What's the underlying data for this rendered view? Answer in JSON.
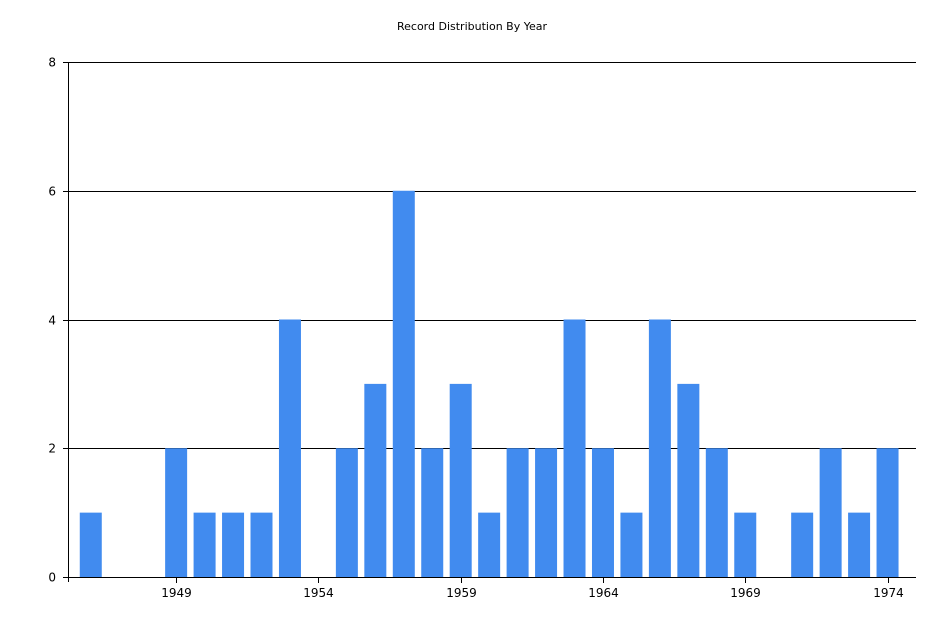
{
  "chart_data": {
    "type": "bar",
    "title": "Record Distribution By Year",
    "xlabel": "",
    "ylabel": "",
    "x": [
      1946,
      1947,
      1948,
      1949,
      1950,
      1951,
      1952,
      1953,
      1954,
      1955,
      1956,
      1957,
      1958,
      1959,
      1960,
      1961,
      1962,
      1963,
      1964,
      1965,
      1966,
      1967,
      1968,
      1969,
      1970,
      1971,
      1972,
      1973,
      1974
    ],
    "values": [
      1,
      0,
      0,
      2,
      1,
      1,
      1,
      4,
      0,
      2,
      3,
      6,
      2,
      3,
      1,
      2,
      2,
      4,
      2,
      1,
      4,
      3,
      2,
      1,
      0,
      1,
      2,
      1,
      2
    ],
    "x_ticks": [
      "1949",
      "1954",
      "1959",
      "1964",
      "1969",
      "1974"
    ],
    "x_tick_values": [
      1949,
      1954,
      1959,
      1964,
      1969,
      1974
    ],
    "y_ticks": [
      "0",
      "2",
      "4",
      "6",
      "8"
    ],
    "ylim": [
      0,
      8
    ],
    "xlim": [
      1945.2,
      1975.0
    ],
    "grid": "horizontal",
    "legend": "none",
    "bar_color": "#418bef",
    "grid_color": "#000000"
  }
}
